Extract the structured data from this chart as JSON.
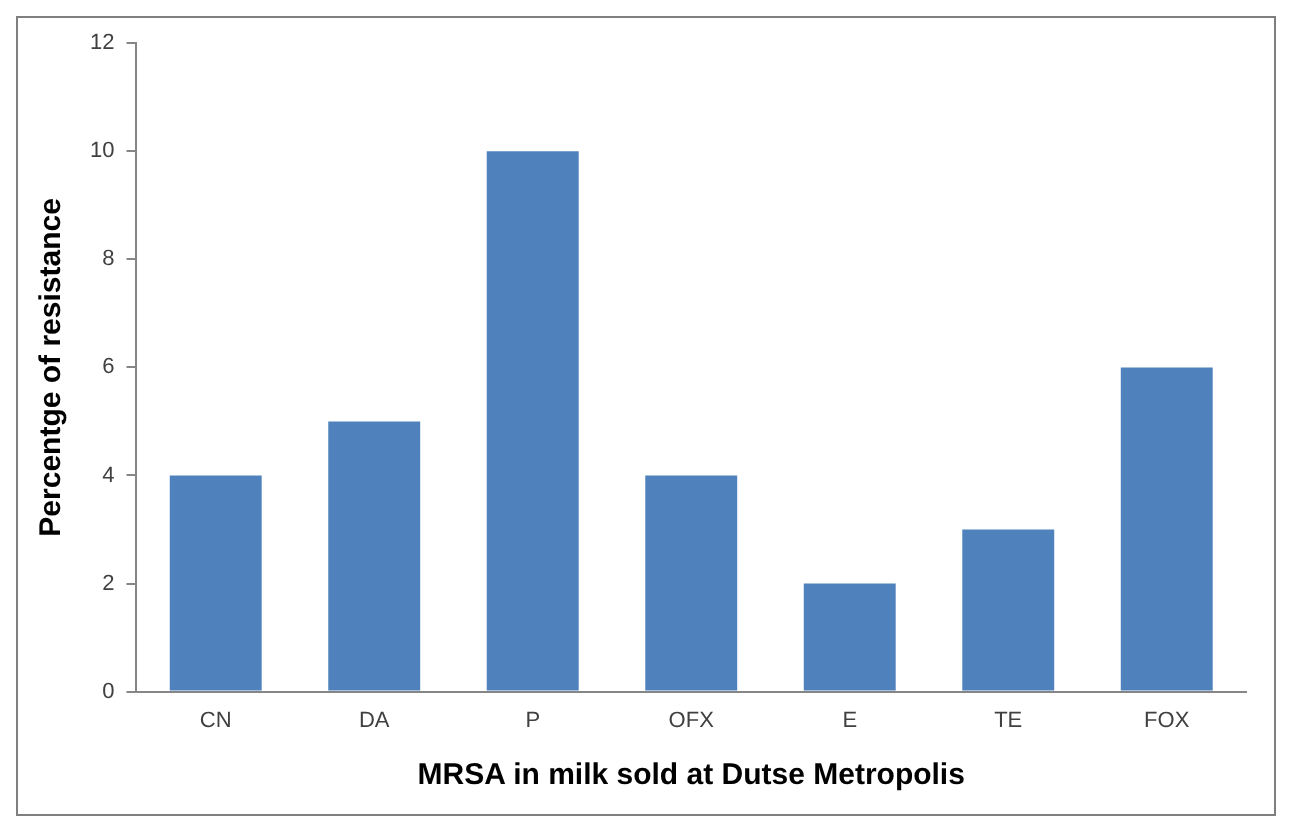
{
  "chart_data": {
    "type": "bar",
    "xlabel": "MRSA in milk sold at Dutse Metropolis",
    "ylabel": "Percentge of resistance",
    "categories": [
      "CN",
      "DA",
      "P",
      "OFX",
      "E",
      "TE",
      "FOX"
    ],
    "values": [
      4,
      5,
      10,
      4,
      2,
      3,
      6
    ],
    "color": "#4f81bd",
    "ylim": [
      0,
      12
    ],
    "yticks": [
      0,
      2,
      4,
      6,
      8,
      10,
      12
    ],
    "grid": false,
    "legend": false
  }
}
